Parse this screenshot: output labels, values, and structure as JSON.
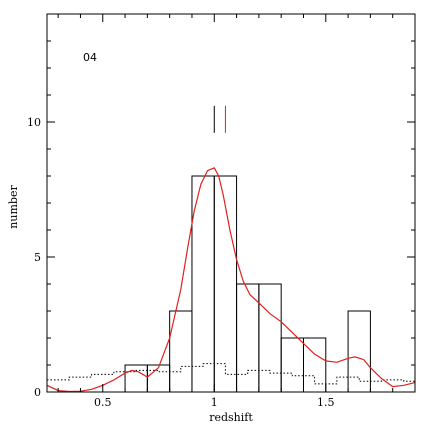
{
  "chart_data": {
    "type": "bar",
    "panel_label": "04",
    "xlabel": "redshift",
    "ylabel": "number",
    "xlim": [
      0.25,
      1.9
    ],
    "ylim": [
      0,
      14
    ],
    "x_ticks": [
      0.5,
      1,
      1.5
    ],
    "x_tick_labels": [
      "0.5",
      "1",
      "1.5"
    ],
    "y_ticks": [
      0,
      5,
      10
    ],
    "y_tick_labels": [
      "0",
      "5",
      "10"
    ],
    "histogram": {
      "bin_edges": [
        0.6,
        0.7,
        0.8,
        0.9,
        1.0,
        1.1,
        1.2,
        1.3,
        1.4,
        1.5,
        1.6,
        1.7
      ],
      "counts": [
        1,
        1,
        3,
        8,
        8,
        4,
        4,
        2,
        2,
        0,
        3
      ],
      "color": "#000000"
    },
    "series": [
      {
        "style": "dotted",
        "color": "#000000",
        "x": [
          0.25,
          0.35,
          0.35,
          0.45,
          0.45,
          0.55,
          0.55,
          0.65,
          0.65,
          0.75,
          0.75,
          0.85,
          0.85,
          0.95,
          0.95,
          1.05,
          1.05,
          1.15,
          1.15,
          1.25,
          1.25,
          1.35,
          1.35,
          1.45,
          1.45,
          1.55,
          1.55,
          1.65,
          1.65,
          1.75,
          1.75,
          1.85,
          1.85,
          1.9
        ],
        "y": [
          0.45,
          0.45,
          0.55,
          0.55,
          0.65,
          0.65,
          0.75,
          0.75,
          0.8,
          0.8,
          0.75,
          0.75,
          0.95,
          0.95,
          1.05,
          1.05,
          0.65,
          0.65,
          0.8,
          0.8,
          0.7,
          0.7,
          0.6,
          0.6,
          0.3,
          0.3,
          0.55,
          0.55,
          0.4,
          0.4,
          0.45,
          0.45,
          0.4,
          0.4
        ]
      },
      {
        "style": "solid",
        "color": "#e02020",
        "x": [
          0.25,
          0.3,
          0.35,
          0.4,
          0.45,
          0.5,
          0.55,
          0.6,
          0.63,
          0.66,
          0.7,
          0.75,
          0.8,
          0.85,
          0.88,
          0.91,
          0.94,
          0.97,
          1.0,
          1.02,
          1.04,
          1.07,
          1.1,
          1.13,
          1.16,
          1.2,
          1.25,
          1.3,
          1.35,
          1.4,
          1.45,
          1.5,
          1.55,
          1.6,
          1.63,
          1.67,
          1.7,
          1.75,
          1.8,
          1.85,
          1.9
        ],
        "y": [
          0.25,
          0.05,
          0.02,
          0.03,
          0.1,
          0.25,
          0.45,
          0.7,
          0.8,
          0.75,
          0.55,
          0.9,
          2.0,
          3.8,
          5.3,
          6.7,
          7.7,
          8.2,
          8.3,
          8.0,
          7.3,
          6.0,
          4.9,
          4.1,
          3.6,
          3.3,
          2.9,
          2.6,
          2.2,
          1.8,
          1.4,
          1.15,
          1.1,
          1.25,
          1.3,
          1.2,
          0.9,
          0.5,
          0.2,
          0.25,
          0.35
        ]
      }
    ],
    "markers": [
      {
        "x": 1.0,
        "y0": 9.6,
        "y1": 10.6,
        "color": "#000000"
      },
      {
        "x": 1.05,
        "y0": 9.6,
        "y1": 10.6,
        "color": "#e02020"
      }
    ],
    "grid": false,
    "legend": "none"
  }
}
